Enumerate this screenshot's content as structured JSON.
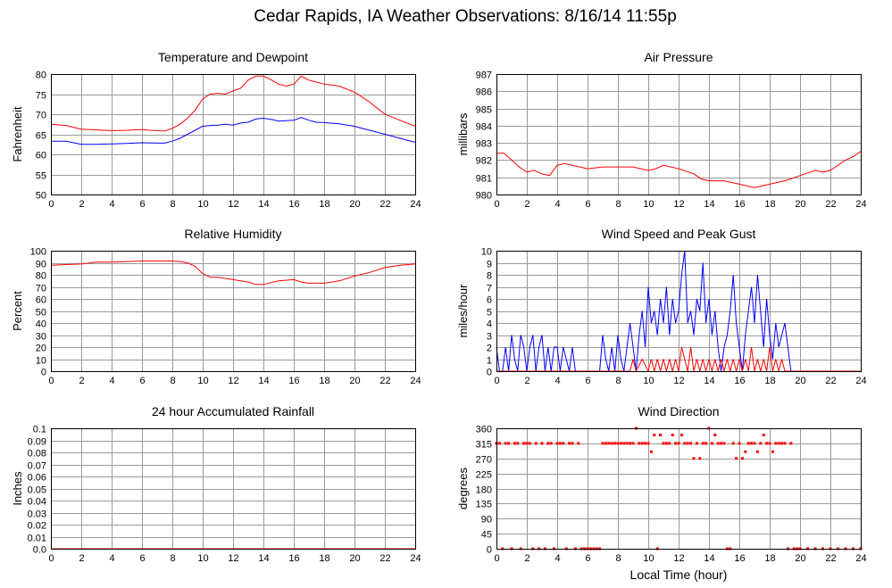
{
  "page_title": "Cedar Rapids, IA Weather Observations: 8/16/14 11:55p",
  "x_axis_label": "Local Time (hour)",
  "colors": {
    "series_red": "#ff0000",
    "series_blue": "#0000ff",
    "grid": "#9a9a9a"
  },
  "chart_data": [
    {
      "id": "temp",
      "type": "line",
      "title": "Temperature and Dewpoint",
      "ylabel": "Fahrenheit",
      "xlim": [
        0,
        24
      ],
      "x_ticks": [
        "0",
        "2",
        "4",
        "6",
        "8",
        "10",
        "12",
        "14",
        "16",
        "18",
        "20",
        "22",
        "24"
      ],
      "ylim": [
        50,
        80
      ],
      "y_ticks": [
        "50",
        "55",
        "60",
        "65",
        "70",
        "75",
        "80"
      ],
      "grid": true,
      "series": [
        {
          "color": "#ff0000",
          "x": [
            0,
            1,
            2,
            3,
            4,
            5,
            6,
            6.5,
            7,
            7.5,
            8,
            8.5,
            9,
            9.5,
            10,
            10.5,
            11,
            11.5,
            12,
            12.5,
            13,
            13.5,
            14,
            14.5,
            15,
            15.5,
            16,
            16.5,
            17,
            17.5,
            18,
            19,
            20,
            20.5,
            21,
            21.5,
            22,
            23,
            24
          ],
          "values": [
            67.5,
            67.2,
            66.3,
            66.1,
            65.9,
            66.0,
            66.2,
            66.0,
            65.9,
            65.8,
            66.5,
            67.5,
            69.0,
            71.0,
            73.8,
            75.0,
            75.2,
            75.0,
            75.8,
            76.5,
            78.5,
            79.5,
            79.5,
            78.6,
            77.5,
            77.0,
            77.5,
            79.5,
            78.5,
            78.0,
            77.5,
            77.0,
            75.5,
            74.3,
            73.0,
            71.5,
            70.0,
            68.5,
            67.0
          ]
        },
        {
          "color": "#0000ff",
          "x": [
            0,
            1,
            2,
            3,
            4,
            5,
            6,
            7,
            7.5,
            8,
            8.5,
            9,
            9.5,
            10,
            10.5,
            11,
            11.5,
            12,
            12.5,
            13,
            13.5,
            14,
            14.5,
            15,
            15.5,
            16,
            16.5,
            17,
            17.5,
            18,
            19,
            20,
            21,
            22,
            23,
            24
          ],
          "values": [
            63.3,
            63.3,
            62.5,
            62.5,
            62.6,
            62.7,
            62.9,
            62.8,
            62.8,
            63.3,
            64.0,
            65.0,
            66.0,
            67.0,
            67.2,
            67.3,
            67.5,
            67.3,
            67.8,
            68.0,
            68.8,
            69.0,
            68.7,
            68.3,
            68.4,
            68.5,
            69.2,
            68.5,
            68.0,
            67.9,
            67.6,
            67.0,
            66.0,
            65.0,
            64.0,
            63.0
          ]
        }
      ]
    },
    {
      "id": "pressure",
      "type": "line",
      "title": "Air Pressure",
      "ylabel": "millibars",
      "xlim": [
        0,
        24
      ],
      "x_ticks": [
        "0",
        "2",
        "4",
        "6",
        "8",
        "10",
        "12",
        "14",
        "16",
        "18",
        "20",
        "22",
        "24"
      ],
      "ylim": [
        980,
        987
      ],
      "y_ticks": [
        "980",
        "981",
        "982",
        "983",
        "984",
        "985",
        "986",
        "987"
      ],
      "grid": true,
      "series": [
        {
          "color": "#ff0000",
          "x": [
            0,
            0.5,
            1,
            1.5,
            2,
            2.5,
            3,
            3.5,
            4,
            4.5,
            5,
            5.5,
            6,
            7,
            8,
            9,
            10,
            10.5,
            11,
            12,
            13,
            13.5,
            14,
            15,
            16,
            16.5,
            17,
            17.5,
            18,
            19,
            20,
            21,
            21.5,
            22,
            23,
            23.5,
            24
          ],
          "values": [
            982.4,
            982.4,
            982.0,
            981.6,
            981.3,
            981.4,
            981.2,
            981.1,
            981.7,
            981.8,
            981.7,
            981.6,
            981.5,
            981.6,
            981.6,
            981.6,
            981.4,
            981.5,
            981.7,
            981.5,
            981.2,
            980.9,
            980.8,
            980.8,
            980.6,
            980.5,
            980.4,
            980.5,
            980.6,
            980.8,
            981.1,
            981.4,
            981.3,
            981.4,
            982.0,
            982.2,
            982.5
          ]
        }
      ]
    },
    {
      "id": "humidity",
      "type": "line",
      "title": "Relative Humidity",
      "ylabel": "Percent",
      "xlim": [
        0,
        24
      ],
      "x_ticks": [
        "0",
        "2",
        "4",
        "6",
        "8",
        "10",
        "12",
        "14",
        "16",
        "18",
        "20",
        "22",
        "24"
      ],
      "ylim": [
        0,
        100
      ],
      "y_ticks": [
        "0",
        "10",
        "20",
        "30",
        "40",
        "50",
        "60",
        "70",
        "80",
        "90",
        "100"
      ],
      "grid": true,
      "series": [
        {
          "color": "#ff0000",
          "x": [
            0,
            1,
            2,
            3,
            4,
            5,
            6,
            7,
            8,
            8.5,
            9,
            9.5,
            10,
            10.5,
            11,
            12,
            13,
            13.5,
            14,
            15,
            16,
            16.5,
            17,
            17.5,
            18,
            19,
            20,
            21,
            22,
            23,
            24
          ],
          "values": [
            88,
            88.5,
            89,
            90.5,
            90.5,
            91,
            91.5,
            91.5,
            91.5,
            91,
            90,
            87,
            81,
            78,
            78,
            76,
            74,
            72,
            72,
            75,
            76,
            74,
            73,
            73,
            73,
            75,
            79,
            82,
            86,
            88,
            89
          ]
        }
      ]
    },
    {
      "id": "wind",
      "type": "line",
      "title": "Wind Speed and Peak Gust",
      "ylabel": "miles/hour",
      "xlim": [
        0,
        24
      ],
      "x_ticks": [
        "0",
        "2",
        "4",
        "6",
        "8",
        "10",
        "12",
        "14",
        "16",
        "18",
        "20",
        "22",
        "24"
      ],
      "ylim": [
        0,
        10
      ],
      "y_ticks": [
        "0",
        "1",
        "2",
        "3",
        "4",
        "5",
        "6",
        "7",
        "8",
        "9",
        "10"
      ],
      "grid": true,
      "series": [
        {
          "color": "#0000ff",
          "x": [
            0,
            0.2,
            0.4,
            0.6,
            0.8,
            1.0,
            1.2,
            1.4,
            1.6,
            1.8,
            2.0,
            2.2,
            2.4,
            2.6,
            2.8,
            3.0,
            3.2,
            3.4,
            3.6,
            3.8,
            4.0,
            4.2,
            4.4,
            4.6,
            4.8,
            5.0,
            5.2,
            5.4,
            5.6,
            5.8,
            6.0,
            6.2,
            6.4,
            6.6,
            6.8,
            7.0,
            7.2,
            7.4,
            7.6,
            7.8,
            8.0,
            8.2,
            8.4,
            8.6,
            8.8,
            9.0,
            9.2,
            9.4,
            9.6,
            9.8,
            10.0,
            10.2,
            10.4,
            10.6,
            10.8,
            11.0,
            11.2,
            11.4,
            11.6,
            11.8,
            12.0,
            12.2,
            12.4,
            12.6,
            12.8,
            13.0,
            13.2,
            13.4,
            13.6,
            13.8,
            14.0,
            14.2,
            14.4,
            14.6,
            14.8,
            15.0,
            15.2,
            15.4,
            15.6,
            15.8,
            16.0,
            16.2,
            16.4,
            16.6,
            16.8,
            17.0,
            17.2,
            17.4,
            17.6,
            17.8,
            18.0,
            18.2,
            18.4,
            18.6,
            18.8,
            19.0,
            19.2,
            19.4,
            19.6,
            20,
            21,
            22,
            23,
            24
          ],
          "values": [
            2,
            0,
            0,
            2,
            0,
            3,
            1,
            0,
            3,
            2,
            0,
            2,
            3,
            0,
            2,
            3,
            0,
            2,
            0,
            2,
            2,
            0,
            2,
            1,
            0,
            2,
            0,
            0,
            0,
            0,
            0,
            0,
            0,
            0,
            0,
            3,
            1,
            0,
            2,
            0,
            3,
            1,
            0,
            2,
            4,
            2,
            0,
            3,
            5,
            2,
            7,
            4,
            5,
            3,
            6,
            4,
            7,
            3,
            6,
            4,
            5,
            8,
            10,
            4,
            5,
            3,
            6,
            5,
            9,
            4,
            6,
            3,
            5,
            2,
            0,
            2,
            3,
            5,
            8,
            4,
            2,
            0,
            3,
            5,
            7,
            4,
            8,
            5,
            2,
            6,
            3,
            1,
            4,
            2,
            3,
            4,
            2,
            0,
            0,
            0,
            0,
            0,
            0,
            0
          ]
        },
        {
          "color": "#ff0000",
          "x": [
            0,
            8.8,
            9.0,
            9.2,
            9.6,
            10.0,
            10.2,
            10.4,
            10.6,
            10.8,
            11.0,
            11.2,
            11.4,
            11.6,
            11.8,
            12.0,
            12.2,
            12.4,
            12.6,
            12.8,
            13.0,
            13.2,
            13.4,
            13.6,
            13.8,
            14.0,
            14.2,
            14.4,
            14.6,
            14.8,
            15.0,
            15.2,
            15.4,
            15.6,
            15.8,
            16.0,
            16.2,
            16.4,
            16.6,
            16.8,
            17.0,
            17.2,
            17.4,
            17.6,
            17.8,
            18.0,
            18.2,
            18.4,
            18.6,
            18.8,
            19.0,
            24
          ],
          "values": [
            0,
            0,
            1,
            0,
            1,
            0,
            1,
            0,
            1,
            0,
            1,
            0,
            1,
            0,
            1,
            0,
            2,
            1,
            0,
            2,
            0,
            1,
            0,
            1,
            0,
            1,
            0,
            1,
            0,
            1,
            0,
            1,
            0,
            1,
            0,
            1,
            0,
            1,
            0,
            2,
            0,
            1,
            0,
            1,
            0,
            2,
            0,
            1,
            0,
            1,
            0,
            0
          ]
        }
      ]
    },
    {
      "id": "rain",
      "type": "line",
      "title": "24 hour Accumulated Rainfall",
      "ylabel": "Inches",
      "xlim": [
        0,
        24
      ],
      "x_ticks": [
        "0",
        "2",
        "4",
        "6",
        "8",
        "10",
        "12",
        "14",
        "16",
        "18",
        "20",
        "22",
        "24"
      ],
      "ylim": [
        0,
        0.1
      ],
      "y_ticks": [
        "0.0",
        "0.01",
        "0.02",
        "0.03",
        "0.04",
        "0.05",
        "0.06",
        "0.07",
        "0.08",
        "0.09",
        "0.1"
      ],
      "grid": true,
      "series": [
        {
          "color": "#ff0000",
          "x": [
            0,
            24
          ],
          "values": [
            0,
            0
          ]
        }
      ]
    },
    {
      "id": "winddir",
      "type": "scatter",
      "title": "Wind Direction",
      "ylabel": "degrees",
      "xlim": [
        0,
        24
      ],
      "x_ticks": [
        "0",
        "2",
        "4",
        "6",
        "8",
        "10",
        "12",
        "14",
        "16",
        "18",
        "20",
        "22",
        "24"
      ],
      "ylim": [
        0,
        360
      ],
      "y_ticks": [
        "0",
        "45",
        "90",
        "135",
        "180",
        "225",
        "270",
        "315",
        "360"
      ],
      "grid": true,
      "series": [
        {
          "color": "#ff0000",
          "x": [
            0,
            0.2,
            0.4,
            0.6,
            0.8,
            1.0,
            1.2,
            1.4,
            1.6,
            1.8,
            2.0,
            2.2,
            2.4,
            2.6,
            2.8,
            3.0,
            3.2,
            3.4,
            3.6,
            3.8,
            4.0,
            4.2,
            4.4,
            4.6,
            4.8,
            5.0,
            5.2,
            5.4,
            5.6,
            5.8,
            6.0,
            6.2,
            6.4,
            6.6,
            6.8,
            7.0,
            7.2,
            7.4,
            7.6,
            7.8,
            8.0,
            8.2,
            8.4,
            8.6,
            8.8,
            9.0,
            9.2,
            9.4,
            9.6,
            9.8,
            10.0,
            10.2,
            10.4,
            10.6,
            10.8,
            11.0,
            11.2,
            11.4,
            11.6,
            11.8,
            12.0,
            12.2,
            12.4,
            12.6,
            12.8,
            13.0,
            13.2,
            13.4,
            13.6,
            13.8,
            14.0,
            14.2,
            14.4,
            14.6,
            14.8,
            15.0,
            15.2,
            15.4,
            15.6,
            15.8,
            16.0,
            16.2,
            16.4,
            16.6,
            16.8,
            17.0,
            17.2,
            17.4,
            17.6,
            17.8,
            18.0,
            18.2,
            18.4,
            18.6,
            18.8,
            19.0,
            19.2,
            19.4,
            19.6,
            19.8,
            20.0,
            20.5,
            21.0,
            21.5,
            22.0,
            22.5,
            23.0,
            23.5,
            24.0
          ],
          "values": [
            315,
            315,
            0,
            315,
            315,
            0,
            315,
            315,
            0,
            315,
            315,
            315,
            0,
            315,
            0,
            315,
            0,
            315,
            315,
            0,
            315,
            315,
            315,
            0,
            315,
            315,
            0,
            315,
            0,
            0,
            0,
            0,
            0,
            0,
            0,
            315,
            315,
            315,
            315,
            315,
            315,
            315,
            315,
            315,
            315,
            315,
            360,
            315,
            315,
            315,
            315,
            290,
            340,
            0,
            340,
            315,
            315,
            315,
            340,
            315,
            315,
            340,
            315,
            315,
            315,
            270,
            315,
            270,
            315,
            315,
            360,
            315,
            340,
            315,
            315,
            315,
            0,
            0,
            315,
            270,
            315,
            270,
            290,
            315,
            315,
            315,
            290,
            315,
            340,
            315,
            315,
            290,
            315,
            315,
            315,
            315,
            0,
            315,
            0,
            0,
            0,
            0,
            0,
            0,
            0,
            0,
            0,
            0,
            0
          ]
        }
      ]
    }
  ]
}
